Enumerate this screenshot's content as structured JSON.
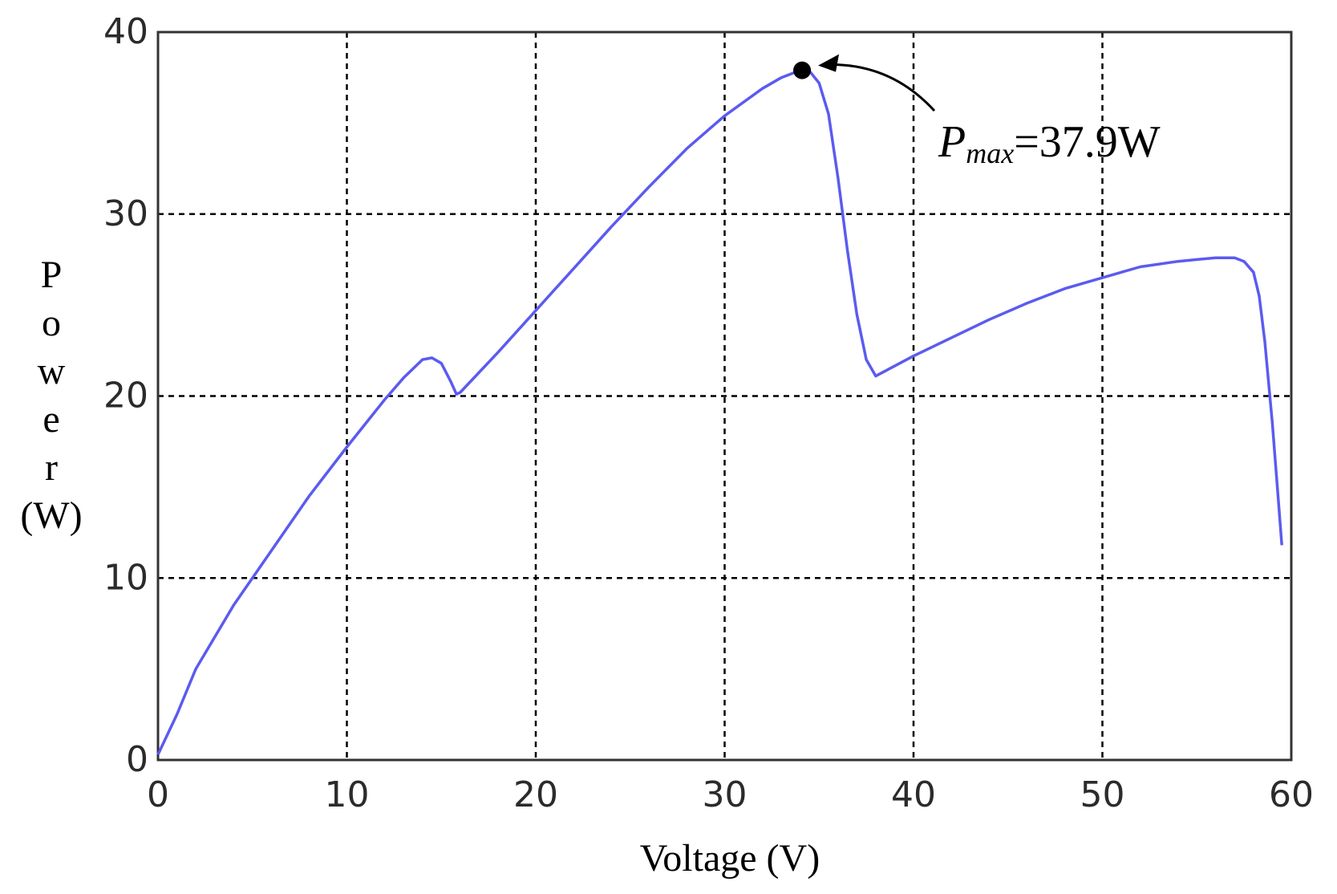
{
  "chart_data": {
    "type": "line",
    "title": "",
    "xlabel": "Voltage (V)",
    "ylabel": "Power (W)",
    "ylabel_chars": [
      "P",
      "o",
      "w",
      "e",
      "r",
      "(W)"
    ],
    "xlim": [
      0,
      60
    ],
    "ylim": [
      0,
      40
    ],
    "xticks": [
      0,
      10,
      20,
      30,
      40,
      50,
      60
    ],
    "yticks": [
      0,
      10,
      20,
      30,
      40
    ],
    "grid": true,
    "series_color": "#5b5bf0",
    "series": [
      {
        "x": [
          0,
          1,
          2,
          4,
          6,
          8,
          10,
          12,
          13,
          14,
          14.5,
          15,
          15.5,
          15.8,
          16,
          18,
          20,
          22,
          24,
          26,
          28,
          30,
          32,
          33,
          34,
          34.5,
          35,
          35.5,
          36,
          36.5,
          37,
          37.5,
          38,
          40,
          42,
          44,
          46,
          48,
          50,
          52,
          54,
          55,
          56,
          57,
          57.5,
          58,
          58.3,
          58.6,
          59,
          59.3,
          59.5
        ],
        "y": [
          0.3,
          2.5,
          5,
          8.5,
          11.5,
          14.5,
          17.2,
          19.8,
          21,
          22,
          22.1,
          21.8,
          20.8,
          20.1,
          20.2,
          22.4,
          24.7,
          27,
          29.3,
          31.5,
          33.6,
          35.4,
          36.9,
          37.5,
          37.9,
          37.85,
          37.2,
          35.5,
          32,
          28,
          24.5,
          22,
          21.1,
          22.2,
          23.2,
          24.2,
          25.1,
          25.9,
          26.5,
          27.1,
          27.4,
          27.5,
          27.6,
          27.6,
          27.4,
          26.8,
          25.5,
          23,
          18.5,
          14.5,
          11.8
        ]
      }
    ],
    "annotations": [
      {
        "label_main": "P",
        "label_sub": "max",
        "label_value": "=37.9W",
        "point": {
          "x": 34.1,
          "y": 37.9
        }
      }
    ]
  }
}
